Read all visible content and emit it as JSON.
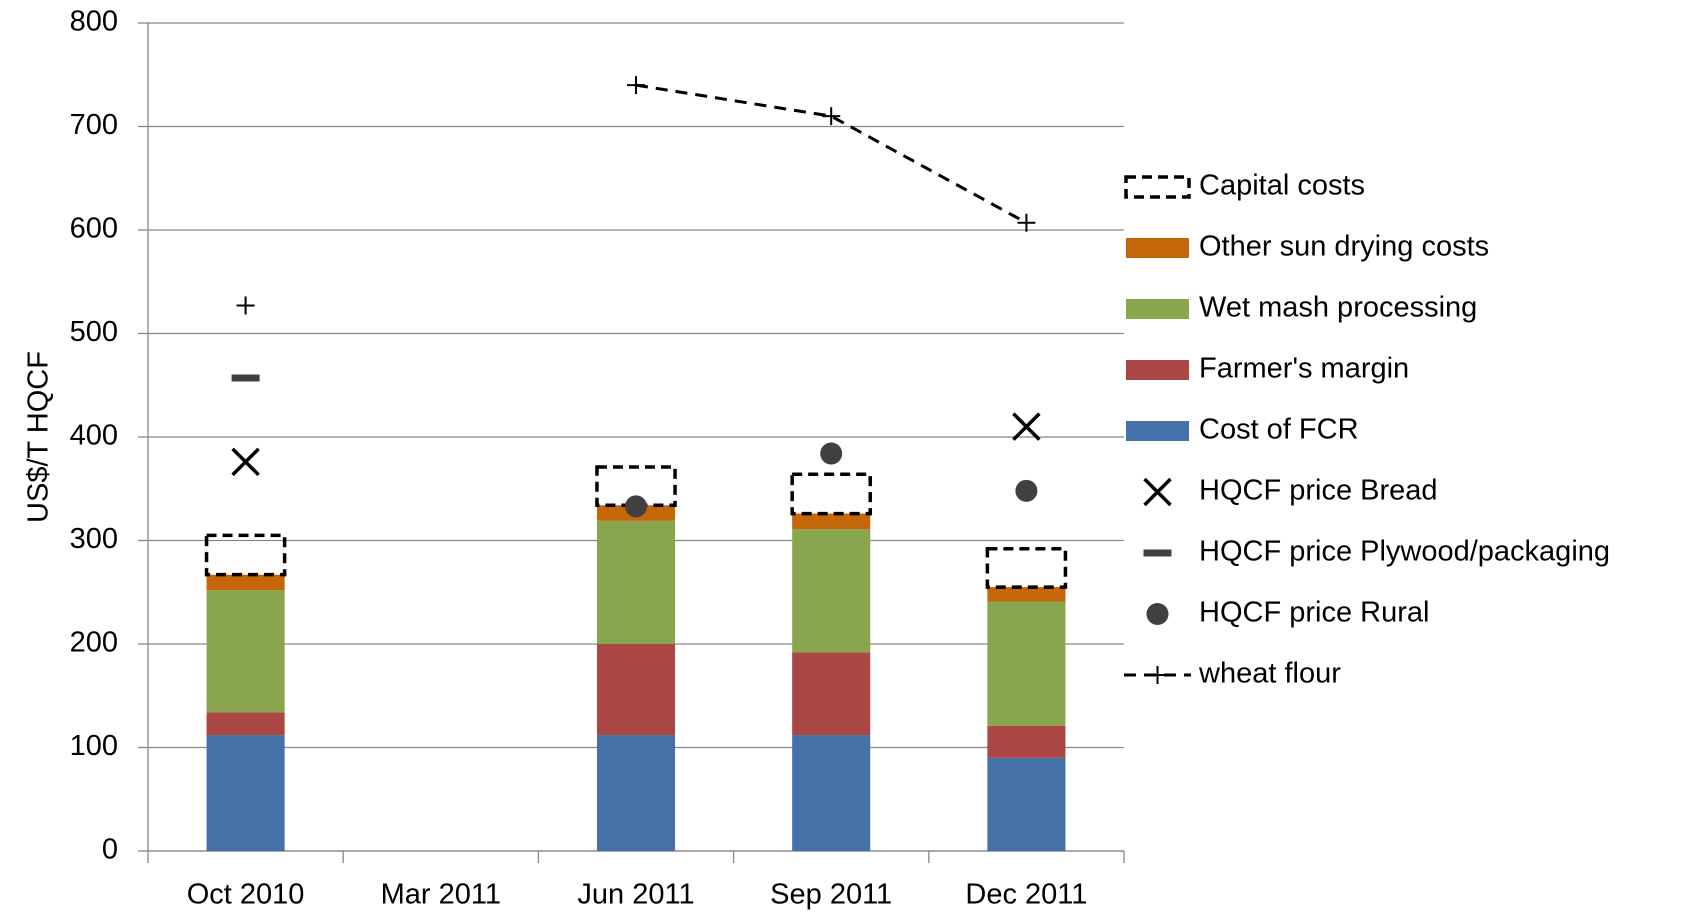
{
  "chart_data": {
    "type": "bar",
    "stacked": true,
    "categories": [
      "Oct 2010",
      "Mar 2011",
      "Jun 2011",
      "Sep 2011",
      "Dec 2011"
    ],
    "y_label": "US$/T HQCF",
    "ylim": [
      0,
      800
    ],
    "yticks": [
      0,
      100,
      200,
      300,
      400,
      500,
      600,
      700,
      800
    ],
    "grid": true,
    "legend": "right",
    "series": [
      {
        "name": "Cost of FCR",
        "kind": "bar",
        "color": "#4472a8",
        "values": [
          112,
          null,
          112,
          112,
          90
        ]
      },
      {
        "name": "Farmer's margin",
        "kind": "bar",
        "color": "#aa4644",
        "values": [
          22,
          null,
          88,
          80,
          31
        ]
      },
      {
        "name": "Wet mash processing",
        "kind": "bar",
        "color": "#89a54e",
        "values": [
          118,
          null,
          119,
          119,
          120
        ]
      },
      {
        "name": "Other sun drying costs",
        "kind": "bar",
        "color": "#c5660a",
        "values": [
          15,
          null,
          15,
          15,
          14
        ]
      },
      {
        "name": "Capital costs",
        "kind": "bar",
        "color": "#000000",
        "style": "dashed",
        "values": [
          38,
          null,
          37,
          38,
          37
        ]
      },
      {
        "name": "HQCF price Bread",
        "kind": "scatter",
        "marker": "x",
        "color": "#000000",
        "values": [
          376,
          null,
          null,
          null,
          410
        ]
      },
      {
        "name": "HQCF price Plywood/packaging",
        "kind": "scatter",
        "marker": "dash",
        "color": "#404040",
        "values": [
          457,
          null,
          null,
          null,
          null
        ]
      },
      {
        "name": "HQCF price Rural",
        "kind": "scatter",
        "marker": "circle",
        "color": "#404040",
        "values": [
          null,
          null,
          333,
          384,
          348
        ]
      },
      {
        "name": "wheat flour",
        "kind": "line",
        "marker": "plus",
        "style": "dashed",
        "color": "#000000",
        "values": [
          527,
          null,
          740,
          710,
          607
        ]
      }
    ]
  }
}
